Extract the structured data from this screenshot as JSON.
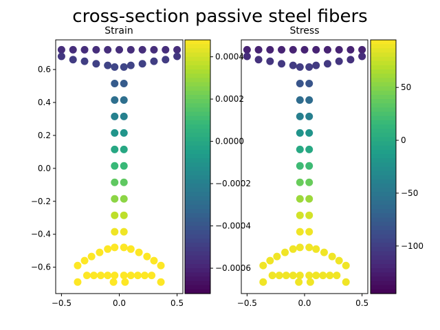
{
  "figure_title": "cross-section passive steel fibers",
  "colormap": [
    "#440154",
    "#482878",
    "#3e4989",
    "#31688e",
    "#26828e",
    "#1f9e89",
    "#35b779",
    "#6ece58",
    "#b5de2b",
    "#fde725"
  ],
  "chart_data": [
    {
      "type": "scatter",
      "title": "Strain",
      "xlim": [
        -0.55,
        0.55
      ],
      "ylim": [
        -0.76,
        0.78
      ],
      "xticks": [
        -0.5,
        0.0,
        0.5
      ],
      "xtick_labels": [
        "−0.5",
        "0.0",
        "0.5"
      ],
      "yticks": [
        0.6,
        0.4,
        0.2,
        0.0,
        -0.2,
        -0.4,
        -0.6
      ],
      "ytick_labels": [
        "0.6",
        "0.4",
        "0.2",
        "0.0",
        "−0.2",
        "−0.4",
        "−0.6"
      ],
      "colorbar": {
        "range": [
          -0.00072,
          0.00048
        ],
        "ticks": [
          0.0004,
          0.0002,
          0.0,
          -0.0002,
          -0.0004,
          -0.0006
        ],
        "tick_labels": [
          "0.0004",
          "0.0002",
          "0.0000",
          "−0.0002",
          "−0.0004",
          "−0.0006"
        ]
      },
      "value_fn": "strain"
    },
    {
      "type": "scatter",
      "title": "Stress",
      "xlim": [
        -0.55,
        0.55
      ],
      "ylim": [
        -0.76,
        0.78
      ],
      "xticks": [
        -0.5,
        0.0,
        0.5
      ],
      "xtick_labels": [
        "−0.5",
        "0.0",
        "0.5"
      ],
      "yticks": [],
      "ytick_labels": [],
      "colorbar": {
        "range": [
          -145,
          95
        ],
        "ticks": [
          50,
          0,
          -50,
          -100
        ],
        "tick_labels": [
          "50",
          "0",
          "−50",
          "−100"
        ]
      },
      "value_fn": "stress"
    }
  ],
  "points": [
    [
      -0.5,
      0.72
    ],
    [
      -0.4,
      0.72
    ],
    [
      -0.3,
      0.72
    ],
    [
      -0.2,
      0.72
    ],
    [
      -0.1,
      0.72
    ],
    [
      0.0,
      0.72
    ],
    [
      0.1,
      0.72
    ],
    [
      0.2,
      0.72
    ],
    [
      0.3,
      0.72
    ],
    [
      0.4,
      0.72
    ],
    [
      0.5,
      0.72
    ],
    [
      -0.5,
      0.68
    ],
    [
      -0.4,
      0.66
    ],
    [
      -0.3,
      0.65
    ],
    [
      -0.2,
      0.635
    ],
    [
      -0.1,
      0.625
    ],
    [
      -0.04,
      0.615
    ],
    [
      0.04,
      0.615
    ],
    [
      0.1,
      0.625
    ],
    [
      0.2,
      0.635
    ],
    [
      0.3,
      0.65
    ],
    [
      0.4,
      0.66
    ],
    [
      0.5,
      0.68
    ],
    [
      -0.04,
      0.515
    ],
    [
      0.04,
      0.515
    ],
    [
      -0.04,
      0.415
    ],
    [
      0.04,
      0.415
    ],
    [
      -0.04,
      0.315
    ],
    [
      0.04,
      0.315
    ],
    [
      -0.04,
      0.215
    ],
    [
      0.04,
      0.215
    ],
    [
      -0.04,
      0.115
    ],
    [
      0.04,
      0.115
    ],
    [
      -0.04,
      0.015
    ],
    [
      0.04,
      0.015
    ],
    [
      -0.04,
      -0.085
    ],
    [
      0.04,
      -0.085
    ],
    [
      -0.04,
      -0.185
    ],
    [
      0.04,
      -0.185
    ],
    [
      -0.04,
      -0.285
    ],
    [
      0.04,
      -0.285
    ],
    [
      -0.04,
      -0.385
    ],
    [
      0.04,
      -0.385
    ],
    [
      -0.04,
      -0.48
    ],
    [
      0.04,
      -0.48
    ],
    [
      -0.1,
      -0.49
    ],
    [
      0.1,
      -0.49
    ],
    [
      -0.17,
      -0.51
    ],
    [
      0.17,
      -0.51
    ],
    [
      -0.24,
      -0.535
    ],
    [
      0.24,
      -0.535
    ],
    [
      -0.3,
      -0.56
    ],
    [
      0.3,
      -0.56
    ],
    [
      -0.36,
      -0.59
    ],
    [
      0.36,
      -0.59
    ],
    [
      -0.28,
      -0.65
    ],
    [
      -0.22,
      -0.65
    ],
    [
      -0.16,
      -0.65
    ],
    [
      -0.1,
      -0.65
    ],
    [
      -0.04,
      -0.65
    ],
    [
      0.04,
      -0.65
    ],
    [
      0.1,
      -0.65
    ],
    [
      0.16,
      -0.65
    ],
    [
      0.22,
      -0.65
    ],
    [
      0.28,
      -0.65
    ],
    [
      -0.36,
      -0.69
    ],
    [
      -0.05,
      -0.69
    ],
    [
      0.05,
      -0.69
    ],
    [
      0.36,
      -0.69
    ]
  ]
}
